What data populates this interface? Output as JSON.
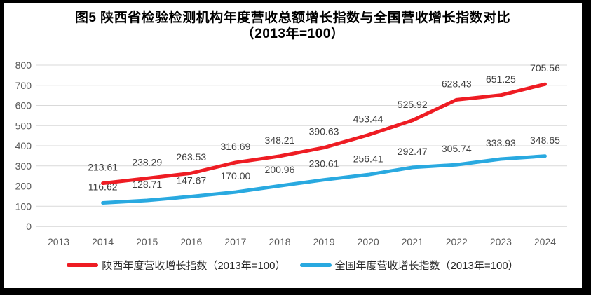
{
  "title": {
    "line1": "图5  陕西省检验检测机构年度营收总额增长指数与全国营收增长指数对比",
    "line2": "（2013年=100）"
  },
  "chart_data": {
    "type": "line",
    "title": "图5 陕西省检验检测机构年度营收总额增长指数与全国营收增长指数对比（2013年=100）",
    "x_categories": [
      "2013",
      "2014",
      "2015",
      "2016",
      "2017",
      "2018",
      "2019",
      "2020",
      "2021",
      "2022",
      "2023",
      "2024"
    ],
    "yticks": [
      "0",
      "100",
      "200",
      "300",
      "400",
      "500",
      "600",
      "700",
      "800"
    ],
    "ylim": [
      0,
      800
    ],
    "grid": true,
    "legend_position": "bottom",
    "series": [
      {
        "name": "陕西年度营收增长指数（2013年=100）",
        "color": "#ee1c23",
        "x": [
          "2014",
          "2015",
          "2016",
          "2017",
          "2018",
          "2019",
          "2020",
          "2021",
          "2022",
          "2023",
          "2024"
        ],
        "values": [
          213.61,
          238.29,
          263.53,
          316.69,
          348.21,
          390.63,
          453.44,
          525.92,
          628.43,
          651.25,
          705.56
        ],
        "labels": [
          "213.61",
          "238.29",
          "263.53",
          "316.69",
          "348.21",
          "390.63",
          "453.44",
          "525.92",
          "628.43",
          "651.25",
          "705.56"
        ]
      },
      {
        "name": "全国年度营收增长指数（2013年=100）",
        "color": "#29a9e0",
        "x": [
          "2014",
          "2015",
          "2016",
          "2017",
          "2018",
          "2019",
          "2020",
          "2021",
          "2022",
          "2023",
          "2024"
        ],
        "values": [
          116.62,
          128.71,
          147.67,
          170,
          200.96,
          230.61,
          256.41,
          292.47,
          305.74,
          333.93,
          348.65
        ],
        "labels": [
          "116.62",
          "128.71",
          "147.67",
          "170.00",
          "200.96",
          "230.61",
          "256.41",
          "292.47",
          "305.74",
          "333.93",
          "348.65"
        ]
      }
    ]
  },
  "colors": {
    "grid": "#d9d9d9",
    "axis_line": "#c0c0c0",
    "axis_text": "#595959",
    "data_label_text": "#404040",
    "series_shaanxi": "#ee1c23",
    "series_national": "#29a9e0"
  }
}
